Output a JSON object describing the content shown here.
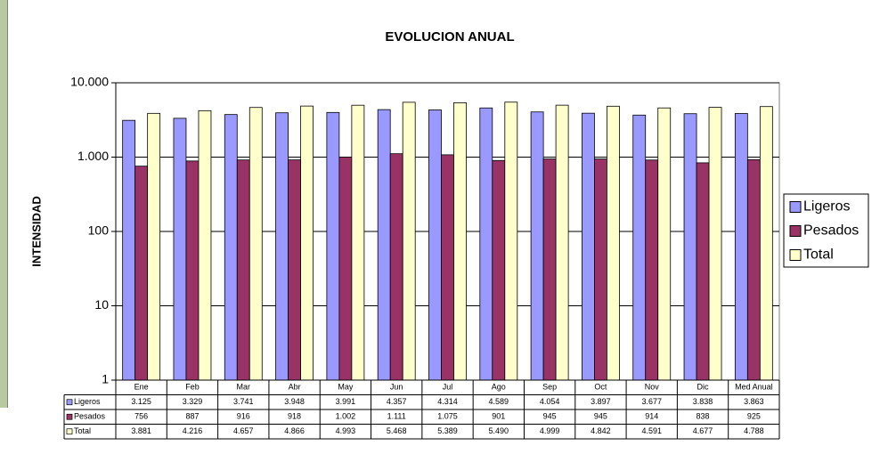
{
  "chart_data": {
    "type": "bar",
    "title": "EVOLUCION ANUAL",
    "y_label": "INTENSIDAD",
    "categories": [
      "Ene",
      "Feb",
      "Mar",
      "Abr",
      "May",
      "Jun",
      "Jul",
      "Ago",
      "Sep",
      "Oct",
      "Nov",
      "Dic",
      "Med Anual"
    ],
    "series": [
      {
        "name": "Ligeros",
        "color": "#9999ff",
        "values": [
          3125,
          3329,
          3741,
          3948,
          3991,
          4357,
          4314,
          4589,
          4054,
          3897,
          3677,
          3838,
          3863
        ],
        "value_labels": [
          "3.125",
          "3.329",
          "3.741",
          "3.948",
          "3.991",
          "4.357",
          "4.314",
          "4.589",
          "4.054",
          "3.897",
          "3.677",
          "3.838",
          "3.863"
        ]
      },
      {
        "name": "Pesados",
        "color": "#993366",
        "values": [
          756,
          887,
          916,
          918,
          1002,
          1111,
          1075,
          901,
          945,
          945,
          914,
          838,
          925
        ],
        "value_labels": [
          "756",
          "887",
          "916",
          "918",
          "1.002",
          "1.111",
          "1.075",
          "901",
          "945",
          "945",
          "914",
          "838",
          "925"
        ]
      },
      {
        "name": "Total",
        "color": "#ffffcc",
        "values": [
          3881,
          4216,
          4657,
          4866,
          4993,
          5468,
          5389,
          5490,
          4999,
          4842,
          4591,
          4677,
          4788
        ],
        "value_labels": [
          "3.881",
          "4.216",
          "4.657",
          "4.866",
          "4.993",
          "5.468",
          "5.389",
          "5.490",
          "4.999",
          "4.842",
          "4.591",
          "4.677",
          "4.788"
        ]
      }
    ],
    "ylim": [
      1,
      10000
    ],
    "log_scale": true,
    "grid": true,
    "legend": "right",
    "yticks": [
      1,
      10,
      100,
      {
        "value": 1000,
        "label": "1.000"
      },
      {
        "value": 10000,
        "label": "10.000"
      }
    ]
  }
}
